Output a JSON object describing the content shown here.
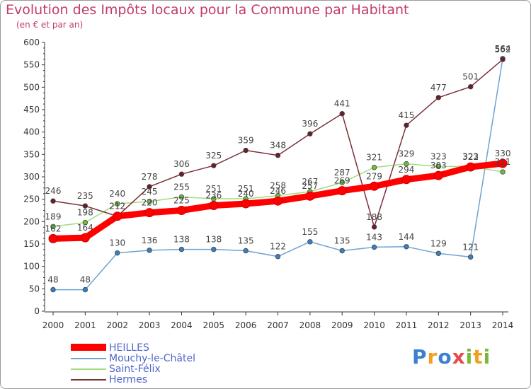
{
  "title": "Evolution des Impôts locaux pour la Commune par Habitant",
  "subtitle": "(en € et par an)",
  "logo": {
    "text": "Proxiti",
    "letters": [
      {
        "ch": "P",
        "color": "#3a7fd0"
      },
      {
        "ch": "r",
        "color": "#f0a020"
      },
      {
        "ch": "o",
        "color": "#3a7fd0"
      },
      {
        "ch": "x",
        "color": "#e84a4a"
      },
      {
        "ch": "i",
        "color": "#7ab83a"
      },
      {
        "ch": "t",
        "color": "#f0a020"
      },
      {
        "ch": "i",
        "color": "#7ab83a"
      }
    ]
  },
  "chart_data": {
    "type": "line",
    "title": "Evolution des Impôts locaux pour la Commune par Habitant",
    "subtitle": "(en € et par an)",
    "xlabel": "",
    "ylabel": "",
    "ylim": [
      0,
      600
    ],
    "yticks": [
      0,
      50,
      100,
      150,
      200,
      250,
      300,
      350,
      400,
      450,
      500,
      550,
      600
    ],
    "grid": false,
    "legend": "bottom-left",
    "x": [
      "2000",
      "2001",
      "2002",
      "2003",
      "2004",
      "2005",
      "2006",
      "2007",
      "2008",
      "2009",
      "2010",
      "2011",
      "2012",
      "2013",
      "2014"
    ],
    "series": [
      {
        "name": "HEILLES",
        "color": "#ff0000",
        "marker": "#ff0000",
        "width": "thick",
        "show_labels": true,
        "values": [
          162,
          164,
          212,
          220,
          225,
          236,
          240,
          246,
          257,
          269,
          279,
          294,
          303,
          322,
          330
        ]
      },
      {
        "name": "Mouchy-le-Châtel",
        "color": "#6ea2d2",
        "marker": "#3a7fc0",
        "width": "thin",
        "show_labels": true,
        "values": [
          48,
          48,
          130,
          136,
          138,
          138,
          135,
          122,
          155,
          135,
          143,
          144,
          129,
          121,
          564
        ]
      },
      {
        "name": "Saint-Félix",
        "color": "#a2dc7e",
        "marker": "#6ac03c",
        "width": "thin",
        "show_labels": true,
        "values": [
          189,
          198,
          240,
          245,
          255,
          251,
          251,
          258,
          267,
          287,
          321,
          329,
          323,
          323,
          311
        ]
      },
      {
        "name": "Hermes",
        "color": "#7a3038",
        "marker": "#6a1e28",
        "width": "thin",
        "show_labels": true,
        "values": [
          246,
          235,
          212,
          278,
          306,
          325,
          359,
          348,
          396,
          441,
          188,
          415,
          477,
          501,
          562
        ]
      }
    ]
  }
}
